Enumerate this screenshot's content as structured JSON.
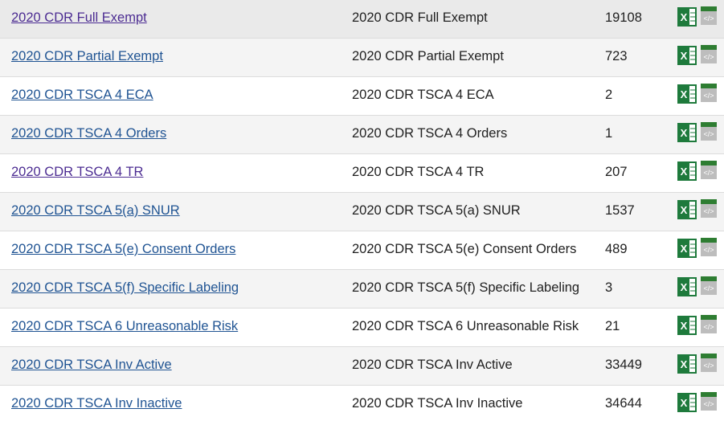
{
  "table": {
    "rows": [
      [
        "2020 CDR Full Exempt",
        "2020 CDR Full Exempt",
        19108
      ],
      [
        "2020 CDR Partial Exempt",
        "2020 CDR Partial Exempt",
        723
      ],
      [
        "2020 CDR TSCA 4 ECA",
        "2020 CDR TSCA 4 ECA",
        2
      ],
      [
        "2020 CDR TSCA 4 Orders",
        "2020 CDR TSCA 4 Orders",
        1
      ],
      [
        "2020 CDR TSCA 4 TR",
        "2020 CDR TSCA 4 TR",
        207
      ],
      [
        "2020 CDR TSCA 5(a) SNUR",
        "2020 CDR TSCA 5(a) SNUR",
        1537
      ],
      [
        "2020 CDR TSCA 5(e) Consent Orders",
        "2020 CDR TSCA 5(e) Consent Orders",
        489
      ],
      [
        "2020 CDR TSCA 5(f) Specific Labeling",
        "2020 CDR TSCA 5(f) Specific Labeling",
        3
      ],
      [
        "2020 CDR TSCA 6 Unreasonable Risk",
        "2020 CDR TSCA 6 Unreasonable Risk",
        21
      ],
      [
        "2020 CDR TSCA Inv Active",
        "2020 CDR TSCA Inv Active",
        33449
      ],
      [
        "2020 CDR TSCA Inv Inactive",
        "2020 CDR TSCA Inv Inactive",
        34644
      ]
    ]
  }
}
